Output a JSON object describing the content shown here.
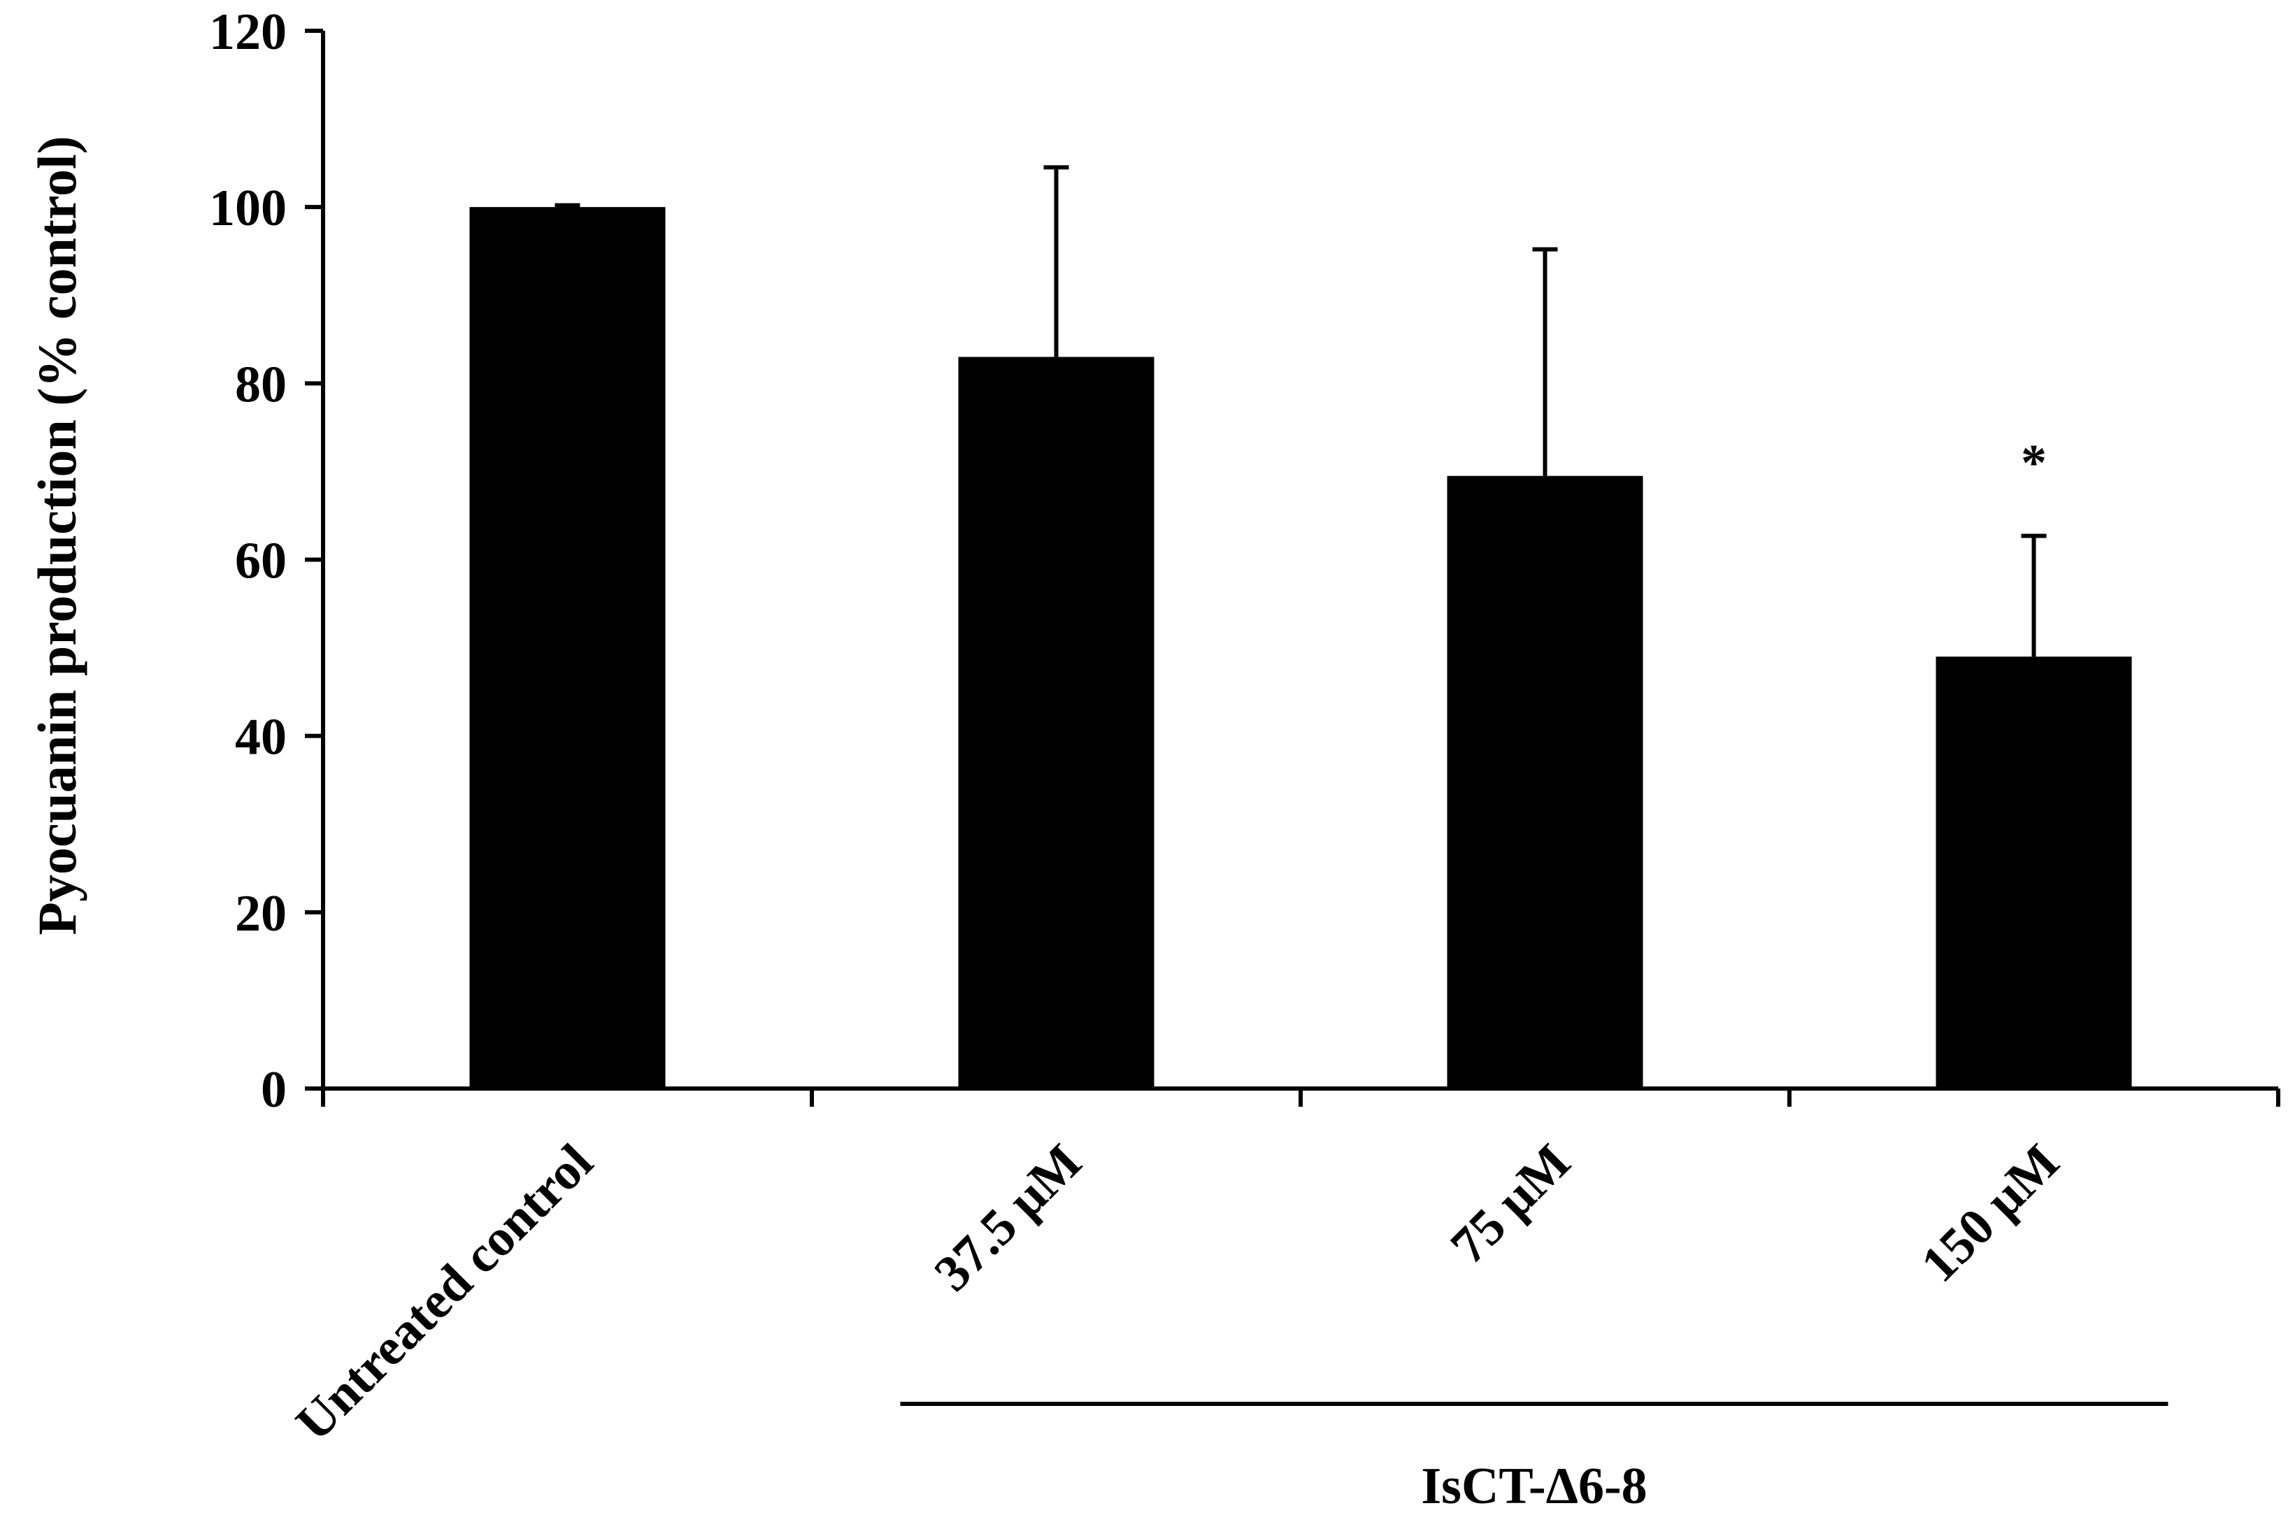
{
  "chart_data": {
    "type": "bar",
    "categories": [
      "Untreated control",
      "37.5 μM",
      "75 μM",
      "150 μM"
    ],
    "series": [
      {
        "values": [
          100,
          83,
          69.5,
          49
        ],
        "error_upper": [
          0.2,
          21.5,
          25.7,
          13.7
        ]
      }
    ],
    "ylabel": "Pyocuanin production (% control)",
    "xlabel": "",
    "ylim": [
      0,
      120
    ],
    "yticks": [
      0,
      20,
      40,
      60,
      80,
      100,
      120
    ],
    "grid": false,
    "bar_color": "#000000",
    "group_annotation": {
      "label": "IsCT-Δ6-8",
      "categories": [
        "37.5 μM",
        "75 μM",
        "150 μM"
      ]
    },
    "significance": [
      {
        "category": "150 μM",
        "label": "*"
      }
    ]
  }
}
